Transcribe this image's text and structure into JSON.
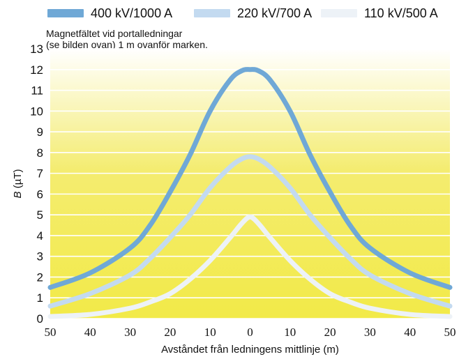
{
  "chart_data": {
    "type": "line",
    "title": "Magnetfältet vid portalledningar\n(se bilden ovan) 1 m ovanför marken.",
    "title_lines": [
      "Magnetfältet vid portalledningar",
      "(se bilden ovan) 1 m ovanför marken."
    ],
    "xlabel": "Avståndet från ledningens mittlinje (m)",
    "ylabel_italic": "B",
    "ylabel_rest": " (µT)",
    "x_tick_labels": [
      "50",
      "40",
      "30",
      "20",
      "10",
      "0",
      "10",
      "20",
      "30",
      "40",
      "50"
    ],
    "x_ticks_signed": [
      -50,
      -40,
      -30,
      -20,
      -10,
      0,
      10,
      20,
      30,
      40,
      50
    ],
    "y_tick_labels": [
      "0",
      "1",
      "2",
      "3",
      "4",
      "5",
      "6",
      "7",
      "8",
      "9",
      "10",
      "11",
      "12",
      "13"
    ],
    "xlim": [
      -50,
      50
    ],
    "ylim": [
      0,
      13
    ],
    "grid": "horizontal",
    "legend_position": "top",
    "background_gradient": [
      "#f2ea48",
      "#ffffff"
    ],
    "x": [
      -50,
      -40,
      -30,
      -25,
      -20,
      -15,
      -10,
      -5,
      -2,
      0,
      2,
      5,
      10,
      15,
      20,
      25,
      30,
      40,
      50
    ],
    "series": [
      {
        "name": "400 kV/1000 A",
        "color": "#6fa8d6",
        "values": [
          1.5,
          2.2,
          3.4,
          4.5,
          6.1,
          7.9,
          10.0,
          11.5,
          11.95,
          12.0,
          11.95,
          11.5,
          10.0,
          7.9,
          6.1,
          4.5,
          3.4,
          2.2,
          1.5
        ]
      },
      {
        "name": "220 kV/700 A",
        "color": "#c3daf0",
        "values": [
          0.6,
          1.2,
          2.1,
          2.9,
          3.9,
          5.0,
          6.3,
          7.3,
          7.7,
          7.8,
          7.7,
          7.3,
          6.3,
          5.0,
          3.9,
          2.9,
          2.1,
          1.2,
          0.6
        ]
      },
      {
        "name": "110 kV/500 A",
        "color": "#edf2f7",
        "values": [
          0.1,
          0.2,
          0.5,
          0.8,
          1.2,
          1.9,
          2.8,
          3.9,
          4.6,
          4.9,
          4.6,
          3.9,
          2.8,
          1.9,
          1.2,
          0.8,
          0.5,
          0.2,
          0.1
        ]
      }
    ]
  }
}
